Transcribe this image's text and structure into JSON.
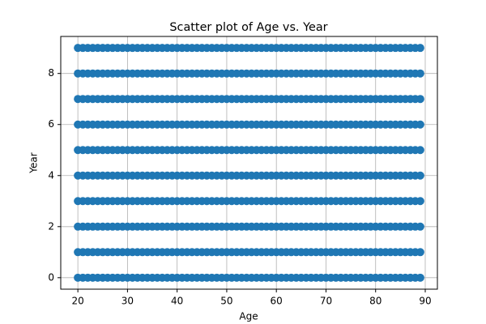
{
  "chart_data": {
    "type": "scatter",
    "title": "Scatter plot of Age vs. Year",
    "x_label": "Age",
    "y_label": "Year",
    "x": [
      20,
      21,
      22,
      23,
      24,
      25,
      26,
      27,
      28,
      29,
      30,
      31,
      32,
      33,
      34,
      35,
      36,
      37,
      38,
      39,
      40,
      41,
      42,
      43,
      44,
      45,
      46,
      47,
      48,
      49,
      50,
      51,
      52,
      53,
      54,
      55,
      56,
      57,
      58,
      59,
      60,
      61,
      62,
      63,
      64,
      65,
      66,
      67,
      68,
      69,
      70,
      71,
      72,
      73,
      74,
      75,
      76,
      77,
      78,
      79,
      80,
      81,
      82,
      83,
      84,
      85,
      86,
      87,
      88,
      89
    ],
    "series": [
      {
        "color": "#1f77b4",
        "values": [
          0,
          0,
          0,
          0,
          0,
          0,
          0,
          0,
          0,
          0,
          0,
          0,
          0,
          0,
          0,
          0,
          0,
          0,
          0,
          0,
          0,
          0,
          0,
          0,
          0,
          0,
          0,
          0,
          0,
          0,
          0,
          0,
          0,
          0,
          0,
          0,
          0,
          0,
          0,
          0,
          0,
          0,
          0,
          0,
          0,
          0,
          0,
          0,
          0,
          0,
          0,
          0,
          0,
          0,
          0,
          0,
          0,
          0,
          0,
          0,
          0,
          0,
          0,
          0,
          0,
          0,
          0,
          0,
          0,
          0
        ]
      },
      {
        "color": "#1f77b4",
        "values": [
          1,
          1,
          1,
          1,
          1,
          1,
          1,
          1,
          1,
          1,
          1,
          1,
          1,
          1,
          1,
          1,
          1,
          1,
          1,
          1,
          1,
          1,
          1,
          1,
          1,
          1,
          1,
          1,
          1,
          1,
          1,
          1,
          1,
          1,
          1,
          1,
          1,
          1,
          1,
          1,
          1,
          1,
          1,
          1,
          1,
          1,
          1,
          1,
          1,
          1,
          1,
          1,
          1,
          1,
          1,
          1,
          1,
          1,
          1,
          1,
          1,
          1,
          1,
          1,
          1,
          1,
          1,
          1,
          1,
          1
        ]
      },
      {
        "color": "#1f77b4",
        "values": [
          2,
          2,
          2,
          2,
          2,
          2,
          2,
          2,
          2,
          2,
          2,
          2,
          2,
          2,
          2,
          2,
          2,
          2,
          2,
          2,
          2,
          2,
          2,
          2,
          2,
          2,
          2,
          2,
          2,
          2,
          2,
          2,
          2,
          2,
          2,
          2,
          2,
          2,
          2,
          2,
          2,
          2,
          2,
          2,
          2,
          2,
          2,
          2,
          2,
          2,
          2,
          2,
          2,
          2,
          2,
          2,
          2,
          2,
          2,
          2,
          2,
          2,
          2,
          2,
          2,
          2,
          2,
          2,
          2,
          2
        ]
      },
      {
        "color": "#1f77b4",
        "values": [
          3,
          3,
          3,
          3,
          3,
          3,
          3,
          3,
          3,
          3,
          3,
          3,
          3,
          3,
          3,
          3,
          3,
          3,
          3,
          3,
          3,
          3,
          3,
          3,
          3,
          3,
          3,
          3,
          3,
          3,
          3,
          3,
          3,
          3,
          3,
          3,
          3,
          3,
          3,
          3,
          3,
          3,
          3,
          3,
          3,
          3,
          3,
          3,
          3,
          3,
          3,
          3,
          3,
          3,
          3,
          3,
          3,
          3,
          3,
          3,
          3,
          3,
          3,
          3,
          3,
          3,
          3,
          3,
          3,
          3
        ]
      },
      {
        "color": "#1f77b4",
        "values": [
          4,
          4,
          4,
          4,
          4,
          4,
          4,
          4,
          4,
          4,
          4,
          4,
          4,
          4,
          4,
          4,
          4,
          4,
          4,
          4,
          4,
          4,
          4,
          4,
          4,
          4,
          4,
          4,
          4,
          4,
          4,
          4,
          4,
          4,
          4,
          4,
          4,
          4,
          4,
          4,
          4,
          4,
          4,
          4,
          4,
          4,
          4,
          4,
          4,
          4,
          4,
          4,
          4,
          4,
          4,
          4,
          4,
          4,
          4,
          4,
          4,
          4,
          4,
          4,
          4,
          4,
          4,
          4,
          4,
          4
        ]
      },
      {
        "color": "#1f77b4",
        "values": [
          5,
          5,
          5,
          5,
          5,
          5,
          5,
          5,
          5,
          5,
          5,
          5,
          5,
          5,
          5,
          5,
          5,
          5,
          5,
          5,
          5,
          5,
          5,
          5,
          5,
          5,
          5,
          5,
          5,
          5,
          5,
          5,
          5,
          5,
          5,
          5,
          5,
          5,
          5,
          5,
          5,
          5,
          5,
          5,
          5,
          5,
          5,
          5,
          5,
          5,
          5,
          5,
          5,
          5,
          5,
          5,
          5,
          5,
          5,
          5,
          5,
          5,
          5,
          5,
          5,
          5,
          5,
          5,
          5,
          5
        ]
      },
      {
        "color": "#1f77b4",
        "values": [
          6,
          6,
          6,
          6,
          6,
          6,
          6,
          6,
          6,
          6,
          6,
          6,
          6,
          6,
          6,
          6,
          6,
          6,
          6,
          6,
          6,
          6,
          6,
          6,
          6,
          6,
          6,
          6,
          6,
          6,
          6,
          6,
          6,
          6,
          6,
          6,
          6,
          6,
          6,
          6,
          6,
          6,
          6,
          6,
          6,
          6,
          6,
          6,
          6,
          6,
          6,
          6,
          6,
          6,
          6,
          6,
          6,
          6,
          6,
          6,
          6,
          6,
          6,
          6,
          6,
          6,
          6,
          6,
          6,
          6
        ]
      },
      {
        "color": "#1f77b4",
        "values": [
          7,
          7,
          7,
          7,
          7,
          7,
          7,
          7,
          7,
          7,
          7,
          7,
          7,
          7,
          7,
          7,
          7,
          7,
          7,
          7,
          7,
          7,
          7,
          7,
          7,
          7,
          7,
          7,
          7,
          7,
          7,
          7,
          7,
          7,
          7,
          7,
          7,
          7,
          7,
          7,
          7,
          7,
          7,
          7,
          7,
          7,
          7,
          7,
          7,
          7,
          7,
          7,
          7,
          7,
          7,
          7,
          7,
          7,
          7,
          7,
          7,
          7,
          7,
          7,
          7,
          7,
          7,
          7,
          7,
          7
        ]
      },
      {
        "color": "#1f77b4",
        "values": [
          8,
          8,
          8,
          8,
          8,
          8,
          8,
          8,
          8,
          8,
          8,
          8,
          8,
          8,
          8,
          8,
          8,
          8,
          8,
          8,
          8,
          8,
          8,
          8,
          8,
          8,
          8,
          8,
          8,
          8,
          8,
          8,
          8,
          8,
          8,
          8,
          8,
          8,
          8,
          8,
          8,
          8,
          8,
          8,
          8,
          8,
          8,
          8,
          8,
          8,
          8,
          8,
          8,
          8,
          8,
          8,
          8,
          8,
          8,
          8,
          8,
          8,
          8,
          8,
          8,
          8,
          8,
          8,
          8,
          8
        ]
      },
      {
        "color": "#1f77b4",
        "values": [
          9,
          9,
          9,
          9,
          9,
          9,
          9,
          9,
          9,
          9,
          9,
          9,
          9,
          9,
          9,
          9,
          9,
          9,
          9,
          9,
          9,
          9,
          9,
          9,
          9,
          9,
          9,
          9,
          9,
          9,
          9,
          9,
          9,
          9,
          9,
          9,
          9,
          9,
          9,
          9,
          9,
          9,
          9,
          9,
          9,
          9,
          9,
          9,
          9,
          9,
          9,
          9,
          9,
          9,
          9,
          9,
          9,
          9,
          9,
          9,
          9,
          9,
          9,
          9,
          9,
          9,
          9,
          9,
          9,
          9
        ]
      }
    ],
    "xlim": [
      16.55,
      92.45
    ],
    "xticks": [
      20,
      30,
      40,
      50,
      60,
      70,
      80,
      90
    ],
    "ylim": [
      -0.45,
      9.45
    ],
    "yticks": [
      0,
      2,
      4,
      6,
      8
    ],
    "grid": true
  }
}
